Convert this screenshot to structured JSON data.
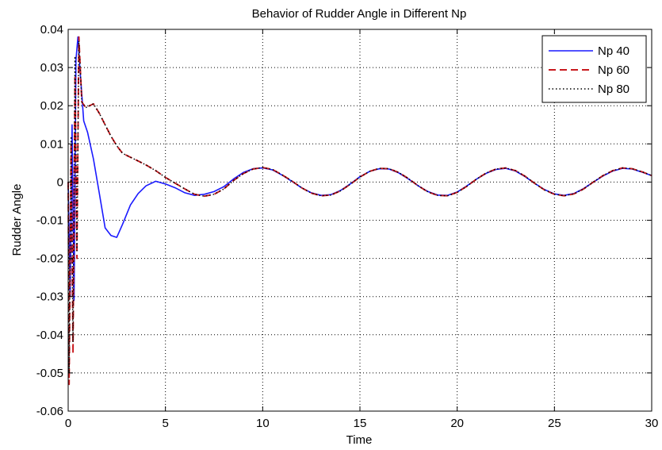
{
  "chart_data": {
    "type": "line",
    "title": "Behavior of Rudder Angle in Different Np",
    "xlabel": "Time",
    "ylabel": "Rudder Angle",
    "xlim": [
      0,
      30
    ],
    "ylim": [
      -0.06,
      0.04
    ],
    "x_ticks": [
      0,
      5,
      10,
      15,
      20,
      25,
      30
    ],
    "x_tick_labels": [
      "0",
      "5",
      "10",
      "15",
      "20",
      "25",
      "30"
    ],
    "y_ticks": [
      -0.06,
      -0.05,
      -0.04,
      -0.03,
      -0.02,
      -0.01,
      0,
      0.01,
      0.02,
      0.03,
      0.04
    ],
    "y_tick_labels": [
      "-0.06",
      "-0.05",
      "-0.04",
      "-0.03",
      "-0.02",
      "-0.01",
      "0",
      "0.01",
      "0.02",
      "0.03",
      "0.04"
    ],
    "grid": true,
    "legend_position": "top-right",
    "series": [
      {
        "name": "Np 40",
        "color": "#1a1aff",
        "style": "solid",
        "x": [
          0,
          0.1,
          0.2,
          0.3,
          0.4,
          0.5,
          0.6,
          0.8,
          1.0,
          1.3,
          1.6,
          1.9,
          2.2,
          2.5,
          2.8,
          3.2,
          3.6,
          4.0,
          4.5,
          5.0,
          5.5,
          6.0,
          6.5,
          7.0,
          7.5,
          8.0,
          8.5,
          9.0,
          9.5,
          10.0,
          10.5,
          11.0,
          11.5,
          12.0,
          12.5,
          13.0,
          13.5,
          14.0,
          14.5,
          15.0,
          15.5,
          16.0,
          16.5,
          17.0,
          17.5,
          18.0,
          18.5,
          19.0,
          19.5,
          20.0,
          20.5,
          21.0,
          21.5,
          22.0,
          22.5,
          23.0,
          23.5,
          24.0,
          24.5,
          25.0,
          25.5,
          26.0,
          26.5,
          27.0,
          27.5,
          28.0,
          28.5,
          29.0,
          29.5,
          30.0
        ],
        "y": [
          0,
          -0.03,
          0.015,
          -0.031,
          0.032,
          0.038,
          0.03,
          0.016,
          0.013,
          0.006,
          -0.003,
          -0.012,
          -0.014,
          -0.0145,
          -0.011,
          -0.006,
          -0.003,
          -0.001,
          0.0002,
          -0.0005,
          -0.0015,
          -0.0028,
          -0.0035,
          -0.0032,
          -0.0025,
          -0.0012,
          0.0008,
          0.0025,
          0.0035,
          0.0037,
          0.0032,
          0.0018,
          0.0002,
          -0.0015,
          -0.0028,
          -0.0035,
          -0.0033,
          -0.0022,
          -0.0005,
          0.0014,
          0.0028,
          0.0035,
          0.0034,
          0.0024,
          0.0008,
          -0.001,
          -0.0025,
          -0.0034,
          -0.0035,
          -0.0026,
          -0.001,
          0.0008,
          0.0023,
          0.0033,
          0.0036,
          0.0029,
          0.0014,
          -0.0004,
          -0.002,
          -0.0031,
          -0.0035,
          -0.003,
          -0.0017,
          0.0,
          0.0016,
          0.0029,
          0.0036,
          0.0034,
          0.0026,
          0.0017
        ]
      },
      {
        "name": "Np 60",
        "color": "#c8191e",
        "style": "dashed",
        "x": [
          0,
          0.05,
          0.15,
          0.25,
          0.35,
          0.45,
          0.55,
          0.7,
          0.9,
          1.1,
          1.3,
          1.6,
          1.9,
          2.2,
          2.5,
          2.8,
          3.2,
          3.6,
          4.0,
          4.5,
          5.0,
          5.5,
          6.0,
          6.5,
          7.0,
          7.5,
          8.0,
          8.5,
          9.0,
          9.5,
          10.0,
          10.5,
          11.0,
          11.5,
          12.0,
          12.5,
          13.0,
          13.5,
          14.0,
          14.5,
          15.0,
          15.5,
          16.0,
          16.5,
          17.0,
          17.5,
          18.0,
          18.5,
          19.0,
          19.5,
          20.0,
          20.5,
          21.0,
          21.5,
          22.0,
          22.5,
          23.0,
          23.5,
          24.0,
          24.5,
          25.0,
          25.5,
          26.0,
          26.5,
          27.0,
          27.5,
          28.0,
          28.5,
          29.0,
          29.5,
          30.0
        ],
        "y": [
          0,
          -0.053,
          0.01,
          -0.045,
          0.028,
          -0.02,
          0.038,
          0.021,
          0.0195,
          0.02,
          0.0205,
          0.018,
          0.015,
          0.012,
          0.0095,
          0.0075,
          0.0065,
          0.0055,
          0.0045,
          0.003,
          0.0012,
          -0.0003,
          -0.0018,
          -0.0032,
          -0.0037,
          -0.0032,
          -0.0018,
          0.0004,
          0.0022,
          0.0034,
          0.0038,
          0.0033,
          0.0019,
          0.0003,
          -0.0015,
          -0.0029,
          -0.0036,
          -0.0034,
          -0.0023,
          -0.0006,
          0.0013,
          0.0028,
          0.0036,
          0.0035,
          0.0025,
          0.0009,
          -0.001,
          -0.0026,
          -0.0035,
          -0.0036,
          -0.0027,
          -0.0011,
          0.0008,
          0.0024,
          0.0034,
          0.0037,
          0.003,
          0.0015,
          -0.0004,
          -0.0021,
          -0.0032,
          -0.0036,
          -0.0031,
          -0.0018,
          0.0,
          0.0017,
          0.003,
          0.0037,
          0.0035,
          0.0027,
          0.0017
        ]
      },
      {
        "name": "Np 80",
        "color": "#000000",
        "style": "dotted",
        "x": [
          0,
          0.05,
          0.15,
          0.25,
          0.35,
          0.45,
          0.55,
          0.7,
          0.9,
          1.1,
          1.3,
          1.6,
          1.9,
          2.2,
          2.5,
          2.8,
          3.2,
          3.6,
          4.0,
          4.5,
          5.0,
          5.5,
          6.0,
          6.5,
          7.0,
          7.5,
          8.0,
          8.5,
          9.0,
          9.5,
          10.0,
          10.5,
          11.0,
          11.5,
          12.0,
          12.5,
          13.0,
          13.5,
          14.0,
          14.5,
          15.0,
          15.5,
          16.0,
          16.5,
          17.0,
          17.5,
          18.0,
          18.5,
          19.0,
          19.5,
          20.0,
          20.5,
          21.0,
          21.5,
          22.0,
          22.5,
          23.0,
          23.5,
          24.0,
          24.5,
          25.0,
          25.5,
          26.0,
          26.5,
          27.0,
          27.5,
          28.0,
          28.5,
          29.0,
          29.5,
          30.0
        ],
        "y": [
          0,
          -0.05,
          0.012,
          -0.042,
          0.033,
          -0.018,
          0.037,
          0.021,
          0.0195,
          0.02,
          0.0205,
          0.018,
          0.015,
          0.012,
          0.0095,
          0.0075,
          0.0065,
          0.0055,
          0.0045,
          0.003,
          0.0012,
          -0.0003,
          -0.0018,
          -0.0032,
          -0.0037,
          -0.0032,
          -0.0018,
          0.0004,
          0.0022,
          0.0034,
          0.0038,
          0.0033,
          0.0019,
          0.0003,
          -0.0015,
          -0.0029,
          -0.0036,
          -0.0034,
          -0.0023,
          -0.0006,
          0.0013,
          0.0028,
          0.0036,
          0.0035,
          0.0025,
          0.0009,
          -0.001,
          -0.0026,
          -0.0035,
          -0.0036,
          -0.0027,
          -0.0011,
          0.0008,
          0.0024,
          0.0034,
          0.0037,
          0.003,
          0.0015,
          -0.0004,
          -0.0021,
          -0.0032,
          -0.0036,
          -0.0031,
          -0.0018,
          0.0,
          0.0017,
          0.003,
          0.0037,
          0.0035,
          0.0027,
          0.0017
        ]
      }
    ]
  }
}
